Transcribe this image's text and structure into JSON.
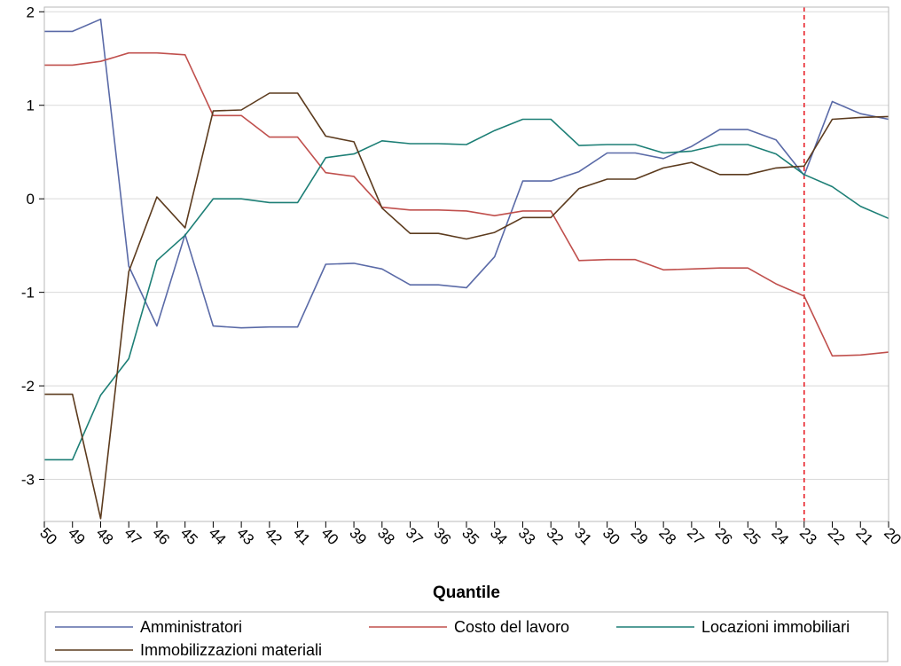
{
  "chart_data": {
    "type": "line",
    "title": "",
    "xlabel": "Quantile",
    "ylabel": "",
    "categories": [
      "50",
      "49",
      "48",
      "47",
      "46",
      "45",
      "44",
      "43",
      "42",
      "41",
      "40",
      "39",
      "38",
      "37",
      "36",
      "35",
      "34",
      "33",
      "32",
      "31",
      "30",
      "29",
      "28",
      "27",
      "26",
      "25",
      "24",
      "23",
      "22",
      "21",
      "20"
    ],
    "ylim": [
      -3.45,
      2.05
    ],
    "yticks": [
      -3,
      -2,
      -1,
      0,
      1,
      2
    ],
    "grid": true,
    "reference_line": {
      "x": "23",
      "color": "#e8242c",
      "style": "dashed"
    },
    "legend_position": "bottom",
    "series": [
      {
        "name": "Amministratori",
        "color": "#5a6aa7",
        "values": [
          1.79,
          1.79,
          1.92,
          -0.72,
          -1.36,
          -0.38,
          -1.36,
          -1.38,
          -1.37,
          -1.37,
          -0.7,
          -0.69,
          -0.75,
          -0.92,
          -0.92,
          -0.95,
          -0.62,
          0.19,
          0.19,
          0.29,
          0.49,
          0.49,
          0.43,
          0.56,
          0.74,
          0.74,
          0.63,
          0.25,
          1.04,
          0.91,
          0.85
        ]
      },
      {
        "name": "Costo del lavoro",
        "color": "#c0504d",
        "values": [
          1.43,
          1.43,
          1.47,
          1.56,
          1.56,
          1.54,
          0.89,
          0.89,
          0.66,
          0.66,
          0.28,
          0.24,
          -0.09,
          -0.12,
          -0.12,
          -0.13,
          -0.18,
          -0.13,
          -0.13,
          -0.66,
          -0.65,
          -0.65,
          -0.76,
          -0.75,
          -0.74,
          -0.74,
          -0.91,
          -1.04,
          -1.68,
          -1.67,
          -1.64
        ]
      },
      {
        "name": "Locazioni immobiliari",
        "color": "#1d7f76",
        "values": [
          -2.79,
          -2.79,
          -2.1,
          -1.71,
          -0.66,
          -0.39,
          0.0,
          0.0,
          -0.04,
          -0.04,
          0.44,
          0.48,
          0.62,
          0.59,
          0.59,
          0.58,
          0.73,
          0.85,
          0.85,
          0.57,
          0.58,
          0.58,
          0.49,
          0.51,
          0.58,
          0.58,
          0.48,
          0.26,
          0.13,
          -0.08,
          -0.21
        ]
      },
      {
        "name": "Immobilizzazioni materiali",
        "color": "#5c3b1e",
        "values": [
          -2.09,
          -2.09,
          -3.42,
          -0.78,
          0.02,
          -0.31,
          0.94,
          0.95,
          1.13,
          1.13,
          0.67,
          0.61,
          -0.1,
          -0.37,
          -0.37,
          -0.43,
          -0.36,
          -0.2,
          -0.2,
          0.11,
          0.21,
          0.21,
          0.33,
          0.39,
          0.26,
          0.26,
          0.33,
          0.35,
          0.85,
          0.87,
          0.88
        ]
      }
    ]
  }
}
